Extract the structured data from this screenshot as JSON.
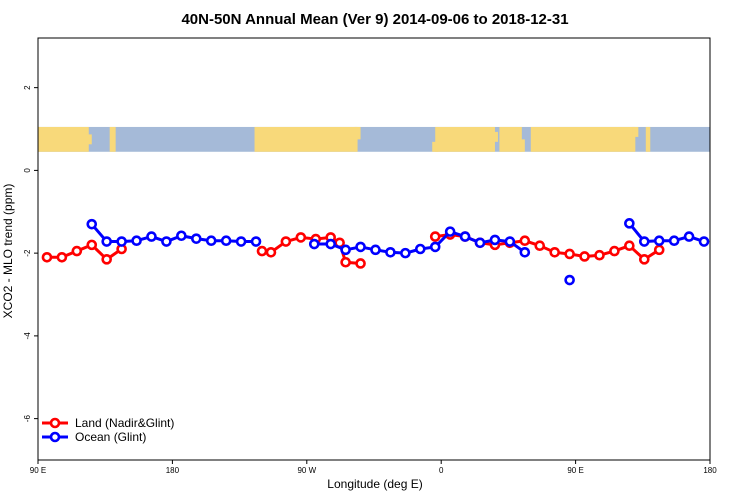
{
  "chart_data": {
    "type": "line",
    "title": "40N-50N Annual Mean (Ver 9)   2014-09-06 to 2018-12-31",
    "xlabel": "Longitude (deg E)",
    "ylabel": "XCO2 - MLO trend (ppm)",
    "xlim": [
      90,
      540
    ],
    "ylim": [
      -7,
      3.2
    ],
    "x_ticks": [
      {
        "value": 90,
        "label": "90 E"
      },
      {
        "value": 180,
        "label": "180"
      },
      {
        "value": 270,
        "label": "90 W"
      },
      {
        "value": 360,
        "label": "0"
      },
      {
        "value": 450,
        "label": "90 E"
      },
      {
        "value": 540,
        "label": "180"
      }
    ],
    "y_ticks": [
      {
        "value": 2,
        "label": "2"
      },
      {
        "value": 0,
        "label": "0"
      },
      {
        "value": -2,
        "label": "-2"
      },
      {
        "value": -4,
        "label": "-4"
      },
      {
        "value": -6,
        "label": "-6"
      }
    ],
    "map_band": {
      "y_from": 0.45,
      "y_to": 1.05,
      "ocean_color": "#a5bad8",
      "land_color": "#f8d97a"
    },
    "legend_position": "bottom-left",
    "series": [
      {
        "name": "Land (Nadir&Glint)",
        "color": "#ff0000",
        "segments": [
          [
            [
              96,
              -2.1
            ],
            [
              106,
              -2.1
            ],
            [
              116,
              -1.95
            ],
            [
              126,
              -1.8
            ],
            [
              136,
              -2.15
            ],
            [
              146,
              -1.9
            ]
          ],
          [
            [
              240,
              -1.95
            ],
            [
              246,
              -1.98
            ],
            [
              256,
              -1.72
            ],
            [
              266,
              -1.62
            ],
            [
              276,
              -1.66
            ],
            [
              286,
              -1.62
            ],
            [
              292,
              -1.75
            ],
            [
              296,
              -2.22
            ],
            [
              306,
              -2.25
            ]
          ],
          [
            [
              356,
              -1.6
            ],
            [
              366,
              -1.55
            ],
            [
              376,
              -1.6
            ],
            [
              386,
              -1.75
            ],
            [
              396,
              -1.8
            ],
            [
              406,
              -1.75
            ],
            [
              416,
              -1.7
            ],
            [
              426,
              -1.82
            ],
            [
              436,
              -1.98
            ],
            [
              446,
              -2.02
            ],
            [
              456,
              -2.08
            ],
            [
              466,
              -2.05
            ],
            [
              476,
              -1.95
            ],
            [
              486,
              -1.82
            ],
            [
              496,
              -2.15
            ],
            [
              506,
              -1.92
            ]
          ]
        ]
      },
      {
        "name": "Ocean (Glint)",
        "color": "#0000ff",
        "segments": [
          [
            [
              126,
              -1.3
            ],
            [
              136,
              -1.72
            ],
            [
              146,
              -1.72
            ],
            [
              156,
              -1.7
            ],
            [
              166,
              -1.6
            ],
            [
              176,
              -1.72
            ],
            [
              186,
              -1.58
            ],
            [
              196,
              -1.65
            ],
            [
              206,
              -1.7
            ],
            [
              216,
              -1.7
            ],
            [
              226,
              -1.72
            ],
            [
              236,
              -1.72
            ]
          ],
          [
            [
              275,
              -1.78
            ],
            [
              286,
              -1.78
            ],
            [
              296,
              -1.92
            ],
            [
              306,
              -1.85
            ],
            [
              316,
              -1.92
            ],
            [
              326,
              -1.98
            ],
            [
              336,
              -2.0
            ],
            [
              346,
              -1.9
            ],
            [
              356,
              -1.85
            ],
            [
              366,
              -1.48
            ],
            [
              376,
              -1.6
            ],
            [
              386,
              -1.75
            ],
            [
              396,
              -1.68
            ],
            [
              406,
              -1.72
            ],
            [
              416,
              -1.98
            ]
          ],
          [
            [
              446,
              -2.65
            ]
          ],
          [
            [
              486,
              -1.28
            ],
            [
              496,
              -1.72
            ],
            [
              506,
              -1.7
            ],
            [
              516,
              -1.7
            ],
            [
              526,
              -1.6
            ],
            [
              536,
              -1.72
            ]
          ]
        ]
      }
    ]
  }
}
